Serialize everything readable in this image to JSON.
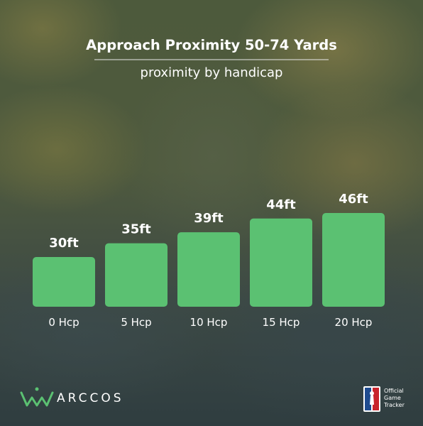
{
  "chart_data": {
    "type": "bar",
    "title": "Approach Proximity 50-74 Yards",
    "subtitle": "proximity by handicap",
    "categories": [
      "0 Hcp",
      "5 Hcp",
      "10 Hcp",
      "15 Hcp",
      "20 Hcp"
    ],
    "values": [
      30,
      35,
      39,
      44,
      46
    ],
    "value_labels": [
      "30ft",
      "35ft",
      "39ft",
      "44ft",
      "46ft"
    ],
    "bar_color": "#5bc172",
    "grid": false,
    "legend": "none"
  },
  "branding": {
    "logo_text": "ARCCOS",
    "logo_color": "#5bc172",
    "tracker_lines": [
      "Official",
      "Game",
      "Tracker"
    ],
    "tour_logo_icon": "pga-tour-logo-icon"
  }
}
